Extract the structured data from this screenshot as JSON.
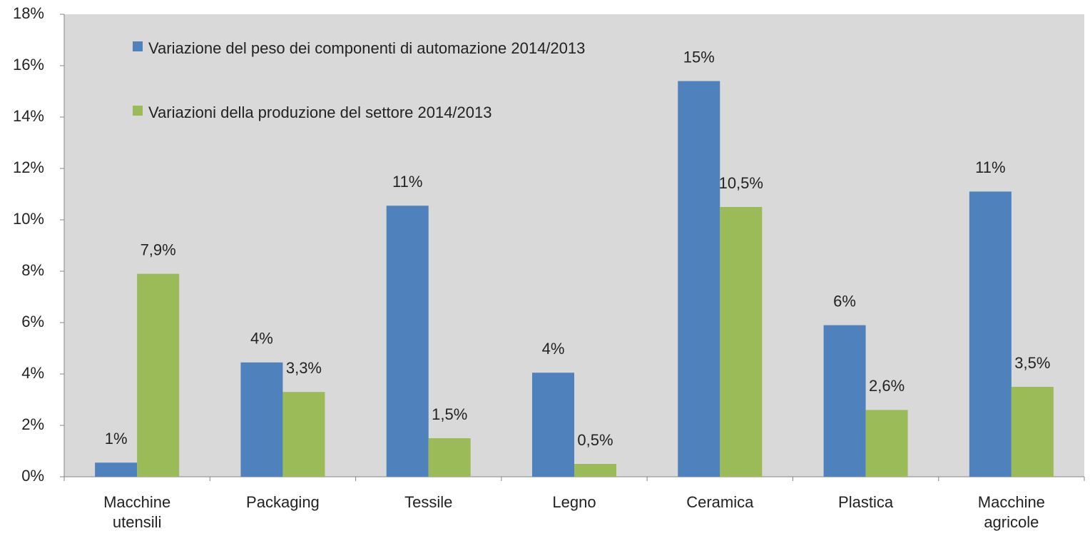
{
  "chart_data": {
    "type": "bar",
    "categories": [
      "Macchine utensili",
      "Packaging",
      "Tessile",
      "Legno",
      "Ceramica",
      "Plastica",
      "Macchine agricole"
    ],
    "series": [
      {
        "name": "Variazione del peso dei componenti di automazione 2014/2013",
        "color": "#4f81bd",
        "values": [
          0.55,
          4.45,
          10.55,
          4.05,
          15.4,
          5.9,
          11.1
        ],
        "value_labels": [
          "1%",
          "4%",
          "11%",
          "4%",
          "15%",
          "6%",
          "11%"
        ]
      },
      {
        "name": "Variazioni della produzione del settore 2014/2013",
        "color": "#9bbb59",
        "values": [
          7.9,
          3.3,
          1.5,
          0.5,
          10.5,
          2.6,
          3.5
        ],
        "value_labels": [
          "7,9%",
          "3,3%",
          "1,5%",
          "0,5%",
          "10,5%",
          "2,6%",
          "3,5%"
        ]
      }
    ],
    "ylim": [
      0,
      18
    ],
    "yticks": [
      {
        "value": 0,
        "label": "0%"
      },
      {
        "value": 2,
        "label": "2%"
      },
      {
        "value": 4,
        "label": "4%"
      },
      {
        "value": 6,
        "label": "6%"
      },
      {
        "value": 8,
        "label": "8%"
      },
      {
        "value": 10,
        "label": "10%"
      },
      {
        "value": 12,
        "label": "12%"
      },
      {
        "value": 14,
        "label": "14%"
      },
      {
        "value": 16,
        "label": "16%"
      },
      {
        "value": 18,
        "label": "18%"
      }
    ],
    "grid": false,
    "legend": "upper left",
    "plot_background": "#d9d9d9"
  }
}
